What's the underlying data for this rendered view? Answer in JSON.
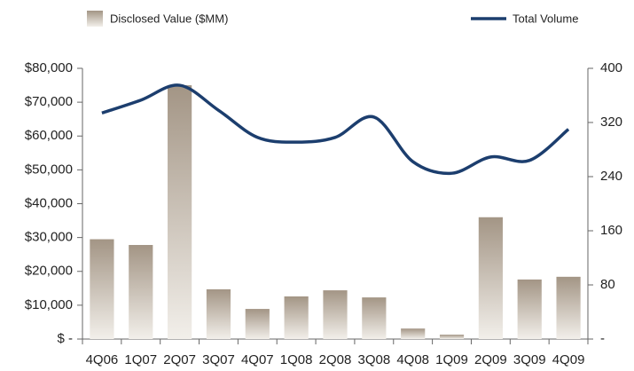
{
  "chart_data": {
    "type": "bar",
    "categories": [
      "4Q06",
      "1Q07",
      "2Q07",
      "3Q07",
      "4Q07",
      "1Q08",
      "2Q08",
      "3Q08",
      "4Q08",
      "1Q09",
      "2Q09",
      "3Q09",
      "4Q09"
    ],
    "series": [
      {
        "name": "Disclosed Value ($MM)",
        "type": "bar",
        "color": "#a39585",
        "values": [
          29500,
          27800,
          75000,
          14700,
          8900,
          12600,
          14400,
          12300,
          3100,
          1300,
          36000,
          17600,
          18400
        ]
      },
      {
        "name": "Total Volume",
        "type": "line",
        "axis": "y2",
        "color": "#1c3e6e",
        "values": [
          334,
          353,
          375,
          338,
          298,
          291,
          298,
          328,
          262,
          245,
          269,
          264,
          310
        ]
      }
    ],
    "ylim": [
      0,
      80000
    ],
    "yticks": [
      {
        "value": 0,
        "label": "$ -"
      },
      {
        "value": 10000,
        "label": "$10,000"
      },
      {
        "value": 20000,
        "label": "$20,000"
      },
      {
        "value": 30000,
        "label": "$30,000"
      },
      {
        "value": 40000,
        "label": "$40,000"
      },
      {
        "value": 50000,
        "label": "$50,000"
      },
      {
        "value": 60000,
        "label": "$60,000"
      },
      {
        "value": 70000,
        "label": "$70,000"
      },
      {
        "value": 80000,
        "label": "$80,000"
      }
    ],
    "y2lim": [
      0,
      400
    ],
    "y2ticks": [
      {
        "value": 0,
        "label": "-"
      },
      80,
      160,
      240,
      320,
      400
    ],
    "legend": "top"
  }
}
